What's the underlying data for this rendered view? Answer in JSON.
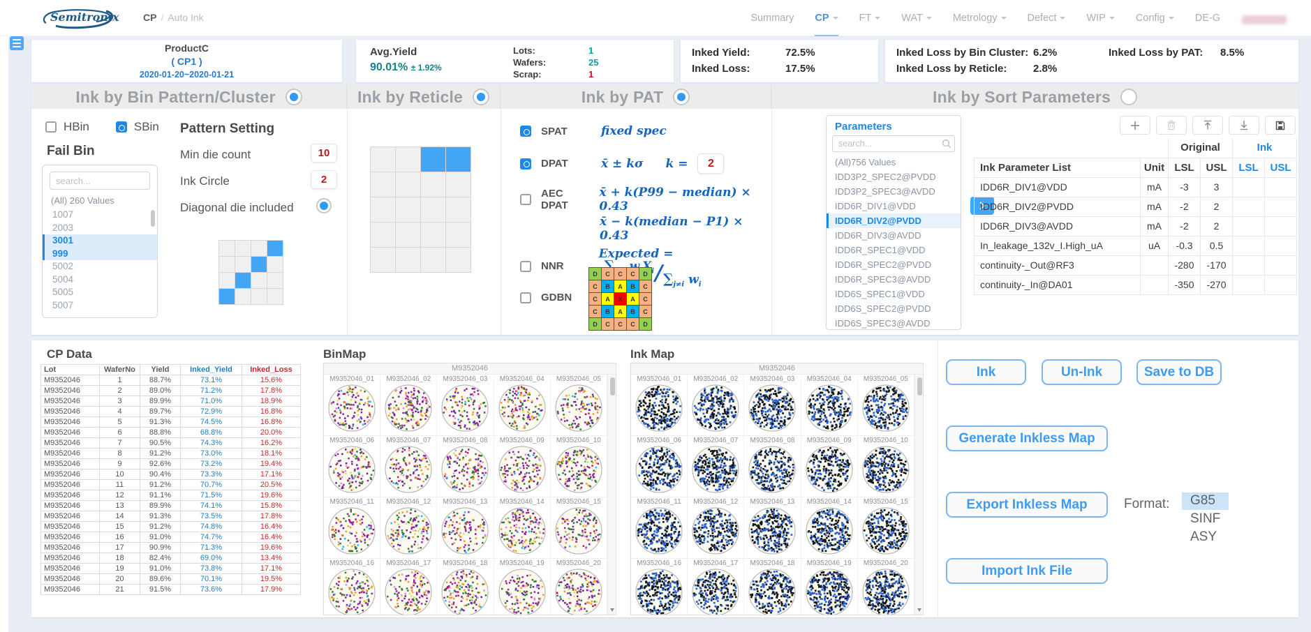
{
  "nav": {
    "brand": "Semitronix",
    "breadcrumb": {
      "section": "CP",
      "page": "Auto Ink"
    },
    "items": [
      {
        "label": "Summary",
        "active": false,
        "caret": false
      },
      {
        "label": "CP",
        "active": true,
        "caret": true
      },
      {
        "label": "FT",
        "active": false,
        "caret": true
      },
      {
        "label": "WAT",
        "active": false,
        "caret": true
      },
      {
        "label": "Metrology",
        "active": false,
        "caret": true
      },
      {
        "label": "Defect",
        "active": false,
        "caret": true
      },
      {
        "label": "WIP",
        "active": false,
        "caret": true
      },
      {
        "label": "Config",
        "active": false,
        "caret": true
      },
      {
        "label": "DE-G",
        "active": false,
        "caret": false
      }
    ]
  },
  "summary": {
    "product": {
      "name": "ProductC",
      "stage": "( CP1 )",
      "dates": "2020-01-20~2020-01-21"
    },
    "avg_yield": {
      "label": "Avg.Yield",
      "value": "90.01%",
      "tolerance": "± 1.92%"
    },
    "counts": [
      {
        "label": "Lots:",
        "value": "1",
        "color": "teal"
      },
      {
        "label": "Wafers:",
        "value": "25",
        "color": "teal"
      },
      {
        "label": "Scrap:",
        "value": "1",
        "color": "red"
      }
    ],
    "inked": [
      {
        "label": "Inked Yield:",
        "value": "72.5%"
      },
      {
        "label": "Inked Loss:",
        "value": "17.5%"
      }
    ],
    "inked_loss": [
      {
        "label": "Inked Loss by Bin Cluster:",
        "value": "6.2%"
      },
      {
        "label": "Inked Loss by Reticle:",
        "value": "2.8%"
      },
      {
        "label": "Inked Loss by PAT:",
        "value": "8.5%"
      }
    ]
  },
  "panels": {
    "bin_pattern": {
      "title": "Ink by Bin Pattern/Cluster",
      "enabled": true,
      "hbin": {
        "label": "HBin",
        "checked": false
      },
      "sbin": {
        "label": "SBin",
        "checked": true
      },
      "fail_bin_label": "Fail Bin",
      "search_placeholder": "search...",
      "all_values": "(All) 260 Values",
      "bins": [
        {
          "v": "1007",
          "sel": false
        },
        {
          "v": "2003",
          "sel": false
        },
        {
          "v": "3001",
          "sel": true
        },
        {
          "v": "999",
          "sel": true
        },
        {
          "v": "5002",
          "sel": false
        },
        {
          "v": "5004",
          "sel": false
        },
        {
          "v": "5005",
          "sel": false
        },
        {
          "v": "5007",
          "sel": false
        }
      ],
      "pattern_setting_label": "Pattern Setting",
      "min_die_count": {
        "label": "Min die count",
        "value": "10"
      },
      "ink_circle": {
        "label": "Ink Circle",
        "value": "2"
      },
      "diagonal": {
        "label": "Diagonal die included",
        "on": true
      },
      "diagonal_grid": {
        "rows": 4,
        "cols": 4,
        "filled": [
          [
            0,
            3
          ],
          [
            1,
            2
          ],
          [
            2,
            1
          ],
          [
            3,
            0
          ]
        ]
      }
    },
    "reticle": {
      "title": "Ink by Reticle",
      "enabled": true,
      "grid": {
        "rows": 5,
        "cols": 4,
        "filled": [
          [
            0,
            2
          ],
          [
            0,
            3
          ]
        ]
      }
    },
    "pat": {
      "title": "Ink by PAT",
      "enabled": true,
      "spat": {
        "name": "SPAT",
        "checked": true,
        "formula": "fixed spec"
      },
      "dpat": {
        "name": "DPAT",
        "checked": true,
        "formula": "x̄ ± kσ",
        "k_label": "k =",
        "k_value": "2"
      },
      "aec": {
        "name": "AEC DPAT",
        "checked": false,
        "line1": "x̄ + k(P99 − median) × 0.43",
        "line2": "x̄ − k(median − P1) × 0.43"
      },
      "nnr": {
        "name": "NNR",
        "checked": false,
        "lhs": "Expected =",
        "sigma": "∑",
        "sub": "j≠i",
        "num_t1": "w",
        "num_t1s": "i",
        "num_t2": "X",
        "num_t2s": "i",
        "den_t1": "w",
        "den_t1s": "i"
      },
      "gdbn": {
        "name": "GDBN",
        "checked": false,
        "grid": [
          [
            "D",
            "C",
            "C",
            "C",
            "D"
          ],
          [
            "C",
            "B",
            "A",
            "B",
            "C"
          ],
          [
            "C",
            "A",
            "X",
            "A",
            "C"
          ],
          [
            "C",
            "B",
            "A",
            "B",
            "C"
          ],
          [
            "D",
            "C",
            "C",
            "C",
            "D"
          ]
        ],
        "colors": {
          "A": "#ffff00",
          "B": "#00b0f0",
          "C": "#f4b183",
          "D": "#92d050",
          "X": "#ff0000"
        }
      }
    },
    "sort_params": {
      "title": "Ink by Sort Parameters",
      "enabled": false,
      "params_label": "Parameters",
      "search_placeholder": "search...",
      "all_values": "(All)756 Values",
      "selected_param": "IDD6R_DIV2@PVDD",
      "params": [
        "IDD3P2_SPEC2@PVDD",
        "IDD3P2_SPEC3@AVDD",
        "IDD6R_DIV1@VDD",
        "IDD6R_DIV2@PVDD",
        "IDD6R_DIV3@AVDD",
        "IDD6R_SPEC1@VDD",
        "IDD6R_SPEC2@PVDD",
        "IDD6R_SPEC3@AVDD",
        "IDD6S_SPEC1@VDD",
        "IDD6S_SPEC2@PVDD",
        "IDD6S_SPEC3@AVDD"
      ],
      "table": {
        "group_original": "Original",
        "group_ink": "Ink",
        "headers": [
          "Ink Parameter List",
          "Unit",
          "LSL",
          "USL",
          "LSL",
          "USL"
        ],
        "rows": [
          {
            "name": "IDD6R_DIV1@VDD",
            "unit": "mA",
            "lsl": "-3",
            "usl": "3",
            "ink_lsl": "",
            "ink_usl": ""
          },
          {
            "name": "IDD6R_DIV2@PVDD",
            "unit": "mA",
            "lsl": "-2",
            "usl": "2",
            "ink_lsl": "",
            "ink_usl": ""
          },
          {
            "name": "IDD6R_DIV3@AVDD",
            "unit": "mA",
            "lsl": "-2",
            "usl": "2",
            "ink_lsl": "",
            "ink_usl": ""
          },
          {
            "name": "In_leakage_132v_I.High_uA",
            "unit": "uA",
            "lsl": "-0.3",
            "usl": "0.5",
            "ink_lsl": "",
            "ink_usl": ""
          },
          {
            "name": "continuity-_Out@RF3",
            "unit": "",
            "lsl": "-280",
            "usl": "-170",
            "ink_lsl": "",
            "ink_usl": ""
          },
          {
            "name": "continuity-_In@DA01",
            "unit": "",
            "lsl": "-350",
            "usl": "-270",
            "ink_lsl": "",
            "ink_usl": ""
          }
        ]
      }
    }
  },
  "cp_data": {
    "title": "CP Data",
    "headers": [
      "Lot",
      "WaferNo",
      "Yield",
      "Inked_Yield",
      "Inked_Loss"
    ],
    "rows": [
      [
        "M9352046",
        "1",
        "88.7%",
        "73.1%",
        "15.6%"
      ],
      [
        "M9352046",
        "2",
        "89.0%",
        "71.2%",
        "17.8%"
      ],
      [
        "M9352046",
        "3",
        "89.9%",
        "71.0%",
        "18.9%"
      ],
      [
        "M9352046",
        "4",
        "89.7%",
        "72.9%",
        "16.8%"
      ],
      [
        "M9352046",
        "5",
        "91.3%",
        "74.5%",
        "16.8%"
      ],
      [
        "M9352046",
        "6",
        "88.8%",
        "68.8%",
        "20.0%"
      ],
      [
        "M9352046",
        "7",
        "90.5%",
        "74.3%",
        "16.2%"
      ],
      [
        "M9352046",
        "8",
        "91.2%",
        "73.0%",
        "18.1%"
      ],
      [
        "M9352046",
        "9",
        "92.6%",
        "73.2%",
        "19.4%"
      ],
      [
        "M9352046",
        "10",
        "90.4%",
        "73.3%",
        "17.1%"
      ],
      [
        "M9352046",
        "11",
        "91.2%",
        "70.7%",
        "20.5%"
      ],
      [
        "M9352046",
        "12",
        "91.1%",
        "71.5%",
        "19.6%"
      ],
      [
        "M9352046",
        "13",
        "89.9%",
        "74.1%",
        "15.8%"
      ],
      [
        "M9352046",
        "14",
        "91.3%",
        "73.5%",
        "17.8%"
      ],
      [
        "M9352046",
        "15",
        "91.2%",
        "74.8%",
        "16.4%"
      ],
      [
        "M9352046",
        "16",
        "91.0%",
        "74.7%",
        "16.4%"
      ],
      [
        "M9352046",
        "17",
        "90.9%",
        "71.3%",
        "19.6%"
      ],
      [
        "M9352046",
        "18",
        "82.4%",
        "69.0%",
        "13.4%"
      ],
      [
        "M9352046",
        "19",
        "91.0%",
        "73.8%",
        "17.1%"
      ],
      [
        "M9352046",
        "20",
        "89.6%",
        "70.1%",
        "19.5%"
      ],
      [
        "M9352046",
        "21",
        "91.5%",
        "73.6%",
        "17.9%"
      ]
    ]
  },
  "maps": {
    "bin_map_title": "BinMap",
    "ink_map_title": "Ink Map",
    "lot": "M9352046",
    "wafers": [
      "M9352046_01",
      "M9352046_02",
      "M9352046_03",
      "M9352046_04",
      "M9352046_05",
      "M9352046_06",
      "M9352046_07",
      "M9352046_08",
      "M9352046_09",
      "M9352046_10",
      "M9352046_11",
      "M9352046_12",
      "M9352046_13",
      "M9352046_14",
      "M9352046_15",
      "M9352046_16",
      "M9352046_17",
      "M9352046_18",
      "M9352046_19",
      "M9352046_20"
    ],
    "bin_dot_colors": [
      "#8e24aa",
      "#6a1b9a",
      "#2e7d32",
      "#f59a23",
      "#ce93d8",
      "#29b6f6",
      "#d4e157",
      "#c2185b"
    ],
    "ink_dot_colors": [
      "#141414",
      "#2b62cc"
    ]
  },
  "actions": {
    "ink": "Ink",
    "unink": "Un-Ink",
    "save_db": "Save to DB",
    "generate": "Generate Inkless Map",
    "export": "Export Inkless Map",
    "format_label": "Format:",
    "formats": [
      {
        "v": "G85",
        "sel": true
      },
      {
        "v": "SINF",
        "sel": false
      },
      {
        "v": "ASY",
        "sel": false
      }
    ],
    "import": "Import Ink File"
  }
}
